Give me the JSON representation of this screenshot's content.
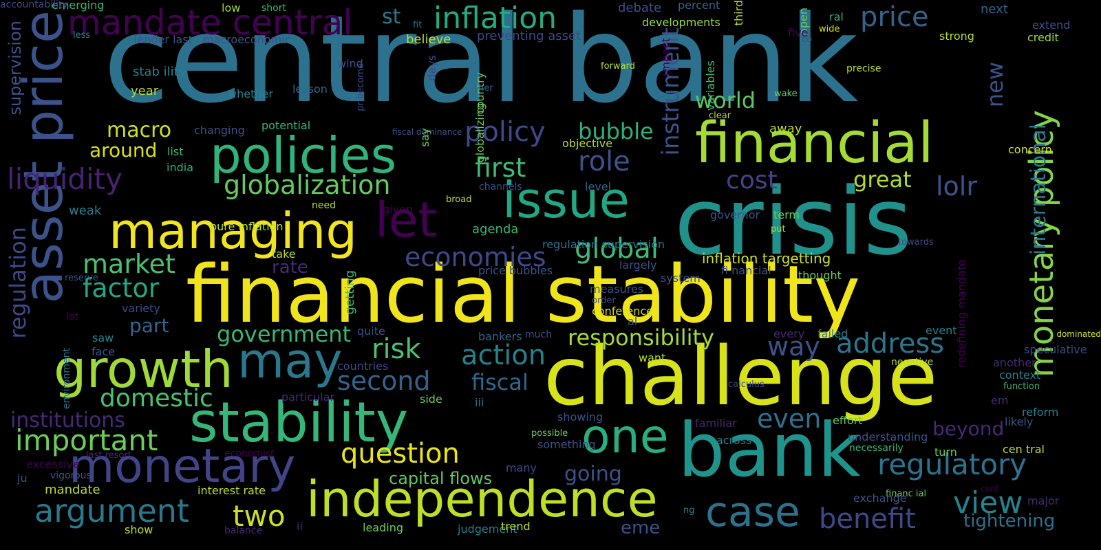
{
  "cloud": {
    "background": "#000000",
    "palette": [
      "#440154",
      "#482878",
      "#3e4989",
      "#31688e",
      "#26828e",
      "#1f9e89",
      "#35b779",
      "#6ece58",
      "#b5de2b",
      "#fde725"
    ],
    "words": [
      {
        "text": "central bank",
        "color": "#2c728e",
        "rot": false
      },
      {
        "text": "crisis",
        "color": "#21918c",
        "rot": false
      },
      {
        "text": "financial stability",
        "color": "#f0e51b",
        "rot": false
      },
      {
        "text": "challenge",
        "color": "#d8e219",
        "rot": false
      },
      {
        "text": "bank",
        "color": "#1f948c",
        "rot": false
      },
      {
        "text": "financial",
        "color": "#a5db36",
        "rot": false
      },
      {
        "text": "issue",
        "color": "#22a785",
        "rot": false
      },
      {
        "text": "policies",
        "color": "#2fb47c",
        "rot": false
      },
      {
        "text": "managing",
        "color": "#f2e51d",
        "rot": false
      },
      {
        "text": "stability",
        "color": "#35b779",
        "rot": false
      },
      {
        "text": "growth",
        "color": "#a0da39",
        "rot": false
      },
      {
        "text": "independence",
        "color": "#bddf26",
        "rot": false
      },
      {
        "text": "monetary",
        "color": "#414487",
        "rot": false
      },
      {
        "text": "may",
        "color": "#2a788e",
        "rot": false
      },
      {
        "text": "one",
        "color": "#29af7f",
        "rot": false
      },
      {
        "text": "asset price",
        "color": "#3b528b",
        "rot": true
      },
      {
        "text": "let",
        "color": "#440154",
        "rot": false
      },
      {
        "text": "mandate central",
        "color": "#440154",
        "rot": false
      },
      {
        "text": "inflation",
        "color": "#25ab82",
        "rot": false
      },
      {
        "text": "price",
        "color": "#33638d",
        "rot": false
      },
      {
        "text": "case",
        "color": "#2c728e",
        "rot": false
      },
      {
        "text": "monetary policy",
        "color": "#84d44b",
        "rot": true
      },
      {
        "text": "argument",
        "color": "#2a788e",
        "rot": false
      },
      {
        "text": "regulatory",
        "color": "#2c738e",
        "rot": false
      },
      {
        "text": "view",
        "color": "#26828e",
        "rot": false
      },
      {
        "text": "benefit",
        "color": "#3e4989",
        "rot": false
      },
      {
        "text": "address",
        "color": "#2a768e",
        "rot": false
      },
      {
        "text": "two",
        "color": "#d0e11c",
        "rot": false
      },
      {
        "text": "question",
        "color": "#eae51a",
        "rot": false
      },
      {
        "text": "important",
        "color": "#6ccd5a",
        "rot": false
      },
      {
        "text": "globalization",
        "color": "#65cb5e",
        "rot": false
      },
      {
        "text": "global",
        "color": "#3fbc73",
        "rot": false
      },
      {
        "text": "policy",
        "color": "#3e4989",
        "rot": false
      },
      {
        "text": "economies",
        "color": "#3e4989",
        "rot": false
      },
      {
        "text": "liquidity",
        "color": "#482374",
        "rot": false
      },
      {
        "text": "macro",
        "color": "#d0e11c",
        "rot": false
      },
      {
        "text": "market",
        "color": "#4ac16d",
        "rot": false
      },
      {
        "text": "factor",
        "color": "#22a884",
        "rot": false
      },
      {
        "text": "risk",
        "color": "#4ac16d",
        "rot": false
      },
      {
        "text": "action",
        "color": "#26818e",
        "rot": false
      },
      {
        "text": "second",
        "color": "#33638d",
        "rot": false
      },
      {
        "text": "fiscal",
        "color": "#31668e",
        "rot": false
      },
      {
        "text": "domestic",
        "color": "#4ac16d",
        "rot": false
      },
      {
        "text": "institutions",
        "color": "#482878",
        "rot": false
      },
      {
        "text": "even",
        "color": "#2c718e",
        "rot": false
      },
      {
        "text": "way",
        "color": "#3b528b",
        "rot": false
      },
      {
        "text": "responsibility",
        "color": "#a5db36",
        "rot": false
      },
      {
        "text": "government",
        "color": "#35b779",
        "rot": false
      },
      {
        "text": "first",
        "color": "#3fbc73",
        "rot": false
      },
      {
        "text": "role",
        "color": "#3b528b",
        "rot": false
      },
      {
        "text": "bubble",
        "color": "#2db27d",
        "rot": false
      },
      {
        "text": "cost",
        "color": "#414487",
        "rot": false
      },
      {
        "text": "great",
        "color": "#b2dd2d",
        "rot": false
      },
      {
        "text": "lolr",
        "color": "#3b528b",
        "rot": false
      },
      {
        "text": "world",
        "color": "#5ec962",
        "rot": false
      },
      {
        "text": "new",
        "color": "#3b528b",
        "rot": true
      },
      {
        "text": "instrument",
        "color": "#3b528b",
        "rot": true
      },
      {
        "text": "international",
        "color": "#2a788e",
        "rot": true
      },
      {
        "text": "regulation",
        "color": "#3e4989",
        "rot": true
      },
      {
        "text": "supervision",
        "color": "#3b528b",
        "rot": true
      },
      {
        "text": "around",
        "color": "#d8e219",
        "rot": false
      },
      {
        "text": "part",
        "color": "#31668e",
        "rot": false
      },
      {
        "text": "tightening",
        "color": "#2c718e",
        "rot": false
      },
      {
        "text": "beyond",
        "color": "#482878",
        "rot": false
      },
      {
        "text": "going",
        "color": "#3b528b",
        "rot": false
      },
      {
        "text": "capital flows",
        "color": "#5ec962",
        "rot": false
      },
      {
        "text": "eme",
        "color": "#3b528b",
        "rot": false
      },
      {
        "text": "rate",
        "color": "#482878",
        "rot": false
      },
      {
        "text": "inflation targetting",
        "color": "#d0e11c",
        "rot": false
      },
      {
        "text": "emerging",
        "color": "#35b779",
        "rot": false
      },
      {
        "text": "low",
        "color": "#a5db36",
        "rot": false
      },
      {
        "text": "short",
        "color": "#35b779",
        "rot": false
      },
      {
        "text": "st",
        "color": "#2a788e",
        "rot": false
      },
      {
        "text": "fit",
        "color": "#2a788e",
        "rot": false
      },
      {
        "text": "lender last",
        "color": "#3b528b",
        "rot": false
      },
      {
        "text": "macroeconomic",
        "color": "#3b528b",
        "rot": false
      },
      {
        "text": "believe",
        "color": "#b8de29",
        "rot": false
      },
      {
        "text": "preventing asset",
        "color": "#3e4989",
        "rot": false
      },
      {
        "text": "debate",
        "color": "#3b528b",
        "rot": false
      },
      {
        "text": "developments",
        "color": "#a0da39",
        "rot": false
      },
      {
        "text": "percent",
        "color": "#31668e",
        "rot": false
      },
      {
        "text": "third",
        "color": "#b8de29",
        "rot": true
      },
      {
        "text": "open",
        "color": "#6ccd5a",
        "rot": true
      },
      {
        "text": "ral",
        "color": "#2db27d",
        "rot": false
      },
      {
        "text": "wide",
        "color": "#d8e219",
        "rot": false
      },
      {
        "text": "five",
        "color": "#440154",
        "rot": false
      },
      {
        "text": "co",
        "color": "#3b528b",
        "rot": false
      },
      {
        "text": "next",
        "color": "#31668e",
        "rot": false
      },
      {
        "text": "extend",
        "color": "#3b528b",
        "rot": false
      },
      {
        "text": "credit",
        "color": "#a0da39",
        "rot": false
      },
      {
        "text": "strong",
        "color": "#b8de29",
        "rot": false
      },
      {
        "text": "stab ility",
        "color": "#26828e",
        "rot": false
      },
      {
        "text": "year",
        "color": "#b8de29",
        "rot": false
      },
      {
        "text": "whether",
        "color": "#26828e",
        "rot": false
      },
      {
        "text": "lesson",
        "color": "#31668e",
        "rot": false
      },
      {
        "text": "wind",
        "color": "#3b528b",
        "rot": false
      },
      {
        "text": "pr become",
        "color": "#3e4989",
        "rot": true
      },
      {
        "text": "days",
        "color": "#3e4989",
        "rot": true
      },
      {
        "text": "country",
        "color": "#6ccd5a",
        "rot": true
      },
      {
        "text": "ther",
        "color": "#31668e",
        "rot": false
      },
      {
        "text": "forward",
        "color": "#b8de29",
        "rot": false
      },
      {
        "text": "impact",
        "color": "#440154",
        "rot": true
      },
      {
        "text": "variables",
        "color": "#3fbc73",
        "rot": true
      },
      {
        "text": "precise",
        "color": "#b8de29",
        "rot": false
      },
      {
        "text": "wake",
        "color": "#6ccd5a",
        "rot": false
      },
      {
        "text": "less",
        "color": "#26828e",
        "rot": false
      },
      {
        "text": "globalizing",
        "color": "#6ccd5a",
        "rot": true
      },
      {
        "text": "clear",
        "color": "#b8de29",
        "rot": false
      },
      {
        "text": "changing",
        "color": "#3b528b",
        "rot": false
      },
      {
        "text": "potential",
        "color": "#35b779",
        "rot": false
      },
      {
        "text": "fiscal dominance",
        "color": "#3b528b",
        "rot": false
      },
      {
        "text": "say",
        "color": "#6ccd5a",
        "rot": true
      },
      {
        "text": "away",
        "color": "#b8de29",
        "rot": false
      },
      {
        "text": "objective",
        "color": "#b8de29",
        "rot": false
      },
      {
        "text": "concern",
        "color": "#d8e219",
        "rot": false
      },
      {
        "text": "list",
        "color": "#3fbc73",
        "rot": false
      },
      {
        "text": "india",
        "color": "#2db27d",
        "rot": false
      },
      {
        "text": "level",
        "color": "#31668e",
        "rot": false
      },
      {
        "text": "channels",
        "color": "#3b528b",
        "rot": false
      },
      {
        "text": "weak",
        "color": "#26828e",
        "rot": false
      },
      {
        "text": "pure inflation",
        "color": "#b8de29",
        "rot": false
      },
      {
        "text": "need",
        "color": "#b8de29",
        "rot": false
      },
      {
        "text": "given",
        "color": "#440154",
        "rot": false
      },
      {
        "text": "broad",
        "color": "#b8de29",
        "rot": false
      },
      {
        "text": "governor",
        "color": "#3b528b",
        "rot": false
      },
      {
        "text": "term",
        "color": "#6ccd5a",
        "rot": false
      },
      {
        "text": "put",
        "color": "#b8de29",
        "rot": false
      },
      {
        "text": "agenda",
        "color": "#35b779",
        "rot": false
      },
      {
        "text": "regulation supervision",
        "color": "#2c728e",
        "rot": false
      },
      {
        "text": "take",
        "color": "#b8de29",
        "rot": false
      },
      {
        "text": "towards",
        "color": "#3e4989",
        "rot": false
      },
      {
        "text": "redefining mandate",
        "color": "#440154",
        "rot": true
      },
      {
        "text": "reserve",
        "color": "#3b528b",
        "rot": false
      },
      {
        "text": "getting",
        "color": "#3fbc73",
        "rot": true
      },
      {
        "text": "price bubbles",
        "color": "#3b528b",
        "rot": false
      },
      {
        "text": "largely",
        "color": "#3b528b",
        "rot": false
      },
      {
        "text": "fi nancial",
        "color": "#3b528b",
        "rot": false
      },
      {
        "text": "thought",
        "color": "#6ccd5a",
        "rot": false
      },
      {
        "text": "system",
        "color": "#3b528b",
        "rot": false
      },
      {
        "text": "measures",
        "color": "#3b528b",
        "rot": false
      },
      {
        "text": "order",
        "color": "#3b528b",
        "rot": false
      },
      {
        "text": "lot",
        "color": "#440154",
        "rot": false
      },
      {
        "text": "variety",
        "color": "#3e4989",
        "rot": false
      },
      {
        "text": "conference",
        "color": "#d8e219",
        "rot": false
      },
      {
        "text": "al",
        "color": "#3b528b",
        "rot": false
      },
      {
        "text": "saw",
        "color": "#26828e",
        "rot": false
      },
      {
        "text": "face",
        "color": "#3b528b",
        "rot": false
      },
      {
        "text": "quite",
        "color": "#3b528b",
        "rot": false
      },
      {
        "text": "bankers",
        "color": "#31668e",
        "rot": false
      },
      {
        "text": "much",
        "color": "#3b528b",
        "rot": false
      },
      {
        "text": "every",
        "color": "#482878",
        "rot": false
      },
      {
        "text": "failed",
        "color": "#26828e",
        "rot": false
      },
      {
        "text": "event",
        "color": "#26828e",
        "rot": false
      },
      {
        "text": "dominated",
        "color": "#d8e219",
        "rot": false
      },
      {
        "text": "environment",
        "color": "#2c728e",
        "rot": true
      },
      {
        "text": "countries",
        "color": "#3e4989",
        "rot": false
      },
      {
        "text": "speculative",
        "color": "#3e4989",
        "rot": false
      },
      {
        "text": "want",
        "color": "#b8de29",
        "rot": false
      },
      {
        "text": "negative",
        "color": "#b8de29",
        "rot": false
      },
      {
        "text": "another",
        "color": "#482878",
        "rot": false
      },
      {
        "text": "context",
        "color": "#26828e",
        "rot": false
      },
      {
        "text": "function",
        "color": "#35b779",
        "rot": false
      },
      {
        "text": "particular",
        "color": "#482878",
        "rot": false
      },
      {
        "text": "side",
        "color": "#6ccd5a",
        "rot": false
      },
      {
        "text": "iii",
        "color": "#2c728e",
        "rot": false
      },
      {
        "text": "calculus",
        "color": "#3e4989",
        "rot": false
      },
      {
        "text": "em",
        "color": "#482878",
        "rot": false
      },
      {
        "text": "reform",
        "color": "#26828e",
        "rot": false
      },
      {
        "text": "showing",
        "color": "#3b528b",
        "rot": false
      },
      {
        "text": "effort",
        "color": "#6ccd5a",
        "rot": false
      },
      {
        "text": "likely",
        "color": "#3b528b",
        "rot": false
      },
      {
        "text": "familiar",
        "color": "#482878",
        "rot": false
      },
      {
        "text": "possible",
        "color": "#6ccd5a",
        "rot": false
      },
      {
        "text": "something",
        "color": "#3b528b",
        "rot": false
      },
      {
        "text": "across",
        "color": "#26828e",
        "rot": false
      },
      {
        "text": "understanding",
        "color": "#3b528b",
        "rot": false
      },
      {
        "text": "necessarily",
        "color": "#35b779",
        "rot": false
      },
      {
        "text": "turn",
        "color": "#6ccd5a",
        "rot": false
      },
      {
        "text": "cen tral",
        "color": "#b8de29",
        "rot": false
      },
      {
        "text": "last resort",
        "color": "#482878",
        "rot": false
      },
      {
        "text": "economist",
        "color": "#440154",
        "rot": false
      },
      {
        "text": "excessive",
        "color": "#440154",
        "rot": false
      },
      {
        "text": "vigorous",
        "color": "#3b528b",
        "rot": false
      },
      {
        "text": "ju",
        "color": "#3b528b",
        "rot": false
      },
      {
        "text": "many",
        "color": "#3e4989",
        "rot": false
      },
      {
        "text": "mandate",
        "color": "#b8de29",
        "rot": false
      },
      {
        "text": "interest rate",
        "color": "#b8de29",
        "rot": false
      },
      {
        "text": "exchange",
        "color": "#3b528b",
        "rot": false
      },
      {
        "text": "financ ial",
        "color": "#6ccd5a",
        "rot": false
      },
      {
        "text": "conf",
        "color": "#440154",
        "rot": false
      },
      {
        "text": "ng",
        "color": "#26828e",
        "rot": false
      },
      {
        "text": "major",
        "color": "#482878",
        "rot": false
      },
      {
        "text": "show",
        "color": "#b8de29",
        "rot": false
      },
      {
        "text": "balance",
        "color": "#482878",
        "rot": false
      },
      {
        "text": "ii",
        "color": "#482878",
        "rot": false
      },
      {
        "text": "leading",
        "color": "#6ccd5a",
        "rot": false
      },
      {
        "text": "judgement",
        "color": "#26828e",
        "rot": false
      },
      {
        "text": "trend",
        "color": "#b8de29",
        "rot": false
      },
      {
        "text": "accountability",
        "color": "#3e4989",
        "rot": false
      }
    ]
  }
}
